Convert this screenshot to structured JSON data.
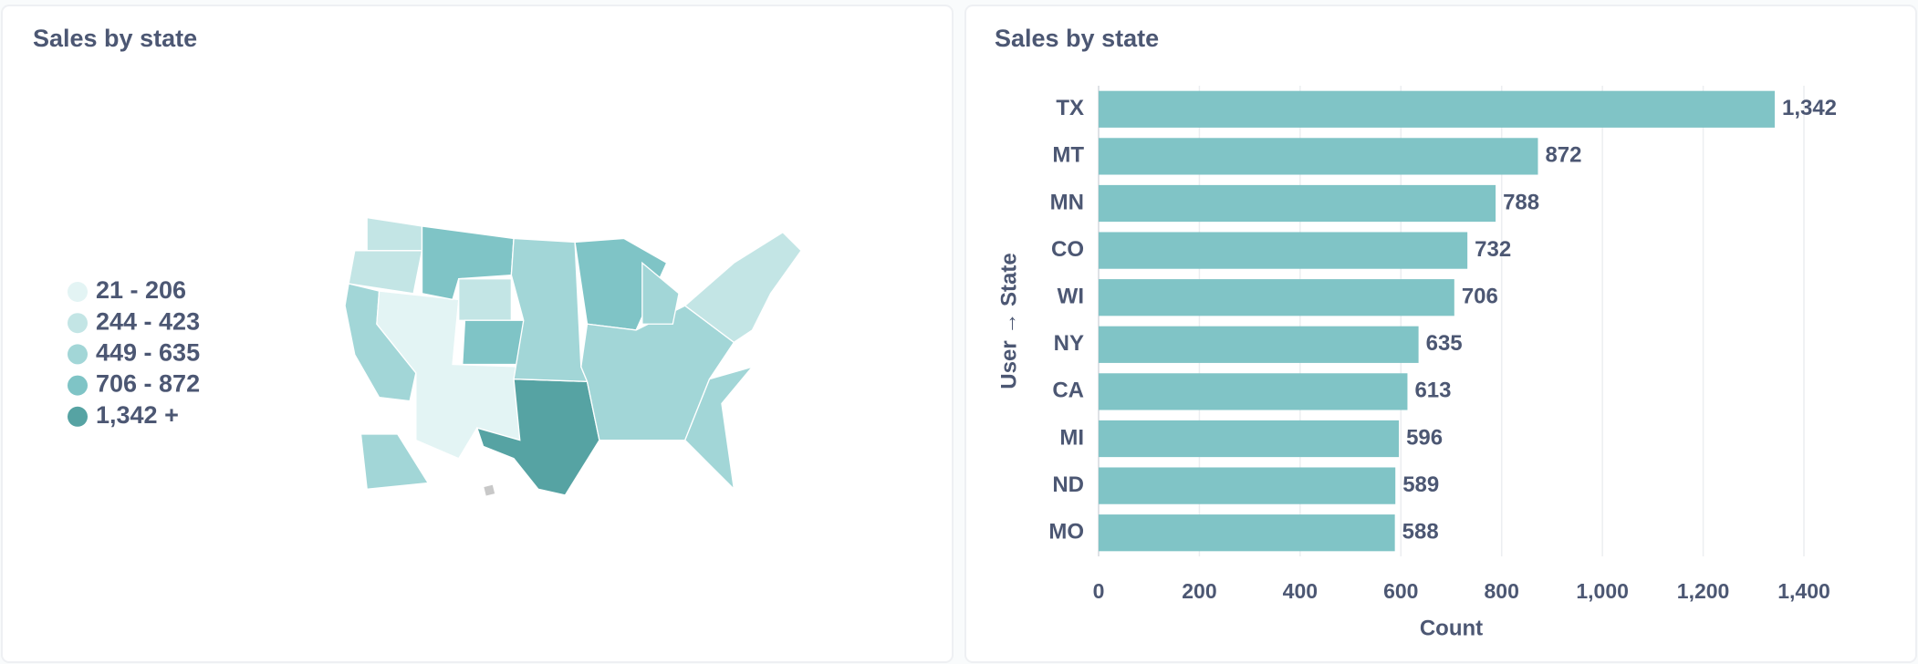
{
  "chart_data": [
    {
      "type": "map",
      "title": "Sales by state",
      "legend": [
        "21 - 206",
        "244 - 423",
        "449 - 635",
        "706 - 872",
        "1,342 +"
      ],
      "colors": [
        "#e3f4f4",
        "#c3e5e5",
        "#a2d6d7",
        "#7fc4c6",
        "#56a3a3"
      ]
    },
    {
      "type": "bar",
      "orientation": "horizontal",
      "title": "Sales by state",
      "categories": [
        "TX",
        "MT",
        "MN",
        "CO",
        "WI",
        "NY",
        "CA",
        "MI",
        "ND",
        "MO"
      ],
      "values": [
        1342,
        872,
        788,
        732,
        706,
        635,
        613,
        596,
        589,
        588
      ],
      "value_labels": [
        "1,342",
        "872",
        "788",
        "732",
        "706",
        "635",
        "613",
        "596",
        "589",
        "588"
      ],
      "color": "#80c4c6",
      "xlabel": "Count",
      "ylabel": "User → State",
      "xlim": [
        0,
        1400
      ],
      "xticks": [
        0,
        200,
        400,
        600,
        800,
        {
          "value": 1000,
          "label": "1,000"
        },
        {
          "value": 1200,
          "label": "1,200"
        },
        {
          "value": 1400,
          "label": "1,400"
        }
      ],
      "grid": true
    }
  ]
}
